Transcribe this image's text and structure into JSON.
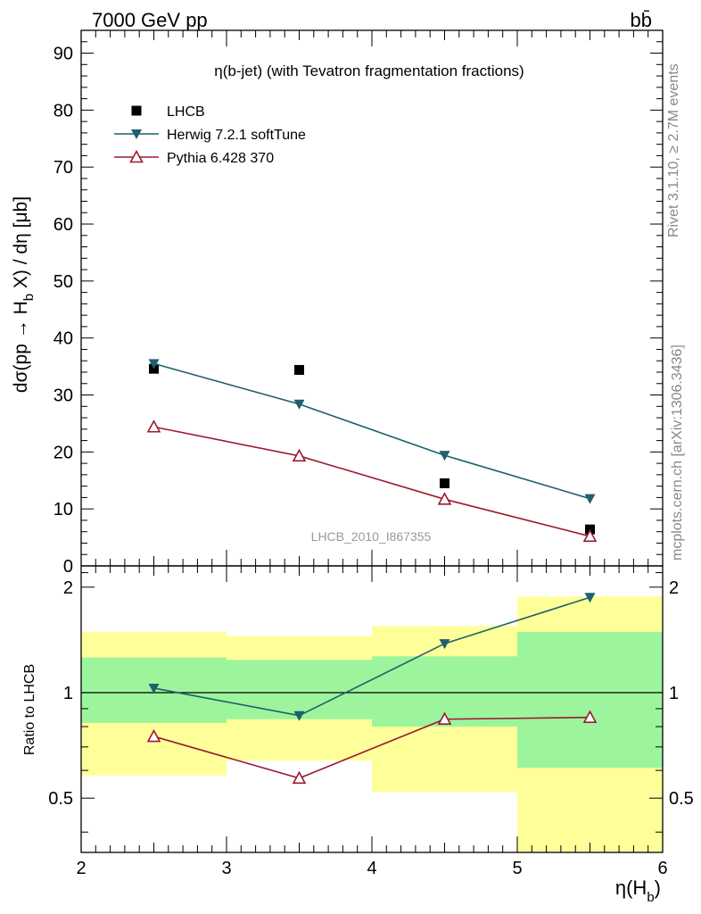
{
  "header": {
    "left_text": "7000 GeV pp",
    "right_text": "bb̄"
  },
  "side_labels": {
    "rivet": "Rivet 3.1.10, ≥ 2.7M events",
    "mcplots": "mcplots.cern.ch [arXiv:1306.3436]"
  },
  "chart_data": [
    {
      "type": "scatter",
      "title": "η(b-jet) (with Tevatron fragmentation fractions)",
      "watermark": "LHCB_2010_I867355",
      "xlabel": "η(H_b)",
      "ylabel": "dσ(pp → H_b X) / dη [μb]",
      "xlim": [
        2,
        6
      ],
      "ylim": [
        0,
        94
      ],
      "x_ticks": [
        2,
        3,
        4,
        5,
        6
      ],
      "y_ticks": [
        0,
        10,
        20,
        30,
        40,
        50,
        60,
        70,
        80,
        90
      ],
      "legend_position": "top-left",
      "grid": false,
      "series": [
        {
          "name": "LHCB",
          "marker": "filled-square",
          "color": "#000000",
          "x": [
            2.5,
            3.5,
            4.5,
            5.5
          ],
          "y": [
            34.6,
            34.4,
            14.5,
            6.4
          ]
        },
        {
          "name": "Herwig 7.2.1 softTune",
          "marker": "filled-triangle-down",
          "color": "#1f5f6e",
          "x": [
            2.5,
            3.5,
            4.5,
            5.5
          ],
          "y": [
            35.5,
            28.4,
            19.4,
            11.8
          ]
        },
        {
          "name": "Pythia 6.428 370",
          "marker": "open-triangle-up",
          "color": "#9b1b30",
          "x": [
            2.5,
            3.5,
            4.5,
            5.5
          ],
          "y": [
            24.4,
            19.3,
            11.7,
            5.2
          ]
        }
      ]
    },
    {
      "type": "line",
      "ylabel": "Ratio to LHCB",
      "xlabel": "η(H_b)",
      "xlim": [
        2,
        6
      ],
      "ylim": [
        0.35,
        2.3
      ],
      "x_ticks": [
        2,
        3,
        4,
        5,
        6
      ],
      "y_ticks": [
        0.5,
        1,
        2
      ],
      "reference": 1,
      "bands": [
        {
          "x0": 2,
          "x1": 3,
          "inner": [
            0.82,
            1.26
          ],
          "outer": [
            0.58,
            1.49
          ]
        },
        {
          "x0": 3,
          "x1": 4,
          "inner": [
            0.84,
            1.24
          ],
          "outer": [
            0.64,
            1.45
          ]
        },
        {
          "x0": 4,
          "x1": 5,
          "inner": [
            0.8,
            1.27
          ],
          "outer": [
            0.52,
            1.55
          ]
        },
        {
          "x0": 5,
          "x1": 6,
          "inner": [
            0.61,
            1.49
          ],
          "outer": [
            0.35,
            1.88
          ]
        }
      ],
      "band_colors": {
        "inner": "#9cf59c",
        "outer": "#ffff99"
      },
      "series": [
        {
          "name": "Herwig 7.2.1 softTune",
          "marker": "filled-triangle-down",
          "color": "#1f5f6e",
          "x": [
            2.5,
            3.5,
            4.5,
            5.5
          ],
          "y": [
            1.03,
            0.86,
            1.38,
            1.87
          ]
        },
        {
          "name": "Pythia 6.428 370",
          "marker": "open-triangle-up",
          "color": "#9b1b30",
          "x": [
            2.5,
            3.5,
            4.5,
            5.5
          ],
          "y": [
            0.75,
            0.57,
            0.84,
            0.85
          ]
        }
      ]
    }
  ]
}
